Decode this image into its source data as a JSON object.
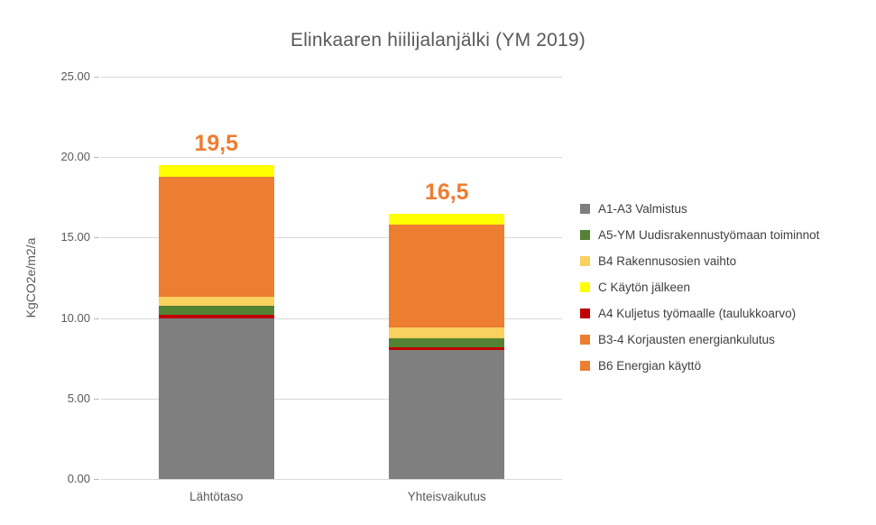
{
  "title": "Elinkaaren hiilijalanjälki (YM 2019)",
  "y_axis": {
    "title": "KgCO2e/m2/a",
    "ticks": [
      "25.00",
      "20.00",
      "15.00",
      "10.00",
      "5.00",
      "0.00"
    ]
  },
  "colors": {
    "gray": "#7f7f7f",
    "dark_red": "#c00000",
    "green": "#548235",
    "tan": "#fad05f",
    "yellow": "#ffff00",
    "orange": "#ed7d31",
    "gridline": "#d9d9d9",
    "title_text": "#595959",
    "legend_text": "#404040",
    "data_label": "#ed7d31"
  },
  "legend": {
    "items": [
      {
        "label": "A1-A3 Valmistus",
        "color": "#7f7f7f"
      },
      {
        "label": "A5-YM Uudisrakennustyömaan toiminnot",
        "color": "#548235"
      },
      {
        "label": "B4 Rakennusosien vaihto",
        "color": "#fad05f"
      },
      {
        "label": "C Käytön jälkeen",
        "color": "#ffff00"
      },
      {
        "label": "A4 Kuljetus työmaalle (taulukkoarvo)",
        "color": "#c00000"
      },
      {
        "label": "B3-4 Korjausten energiankulutus",
        "color": "#ed7d31"
      },
      {
        "label": "B6 Energian käyttö",
        "color": "#ed7d31"
      }
    ]
  },
  "chart_data": {
    "type": "bar",
    "stacked": true,
    "title": "Elinkaaren hiilijalanjälki (YM 2019)",
    "xlabel": "",
    "ylabel": "KgCO2e/m2/a",
    "ylim": [
      0,
      25
    ],
    "ytick_step": 5,
    "grid": true,
    "legend_position": "right",
    "categories": [
      "Lähtötaso",
      "Yhteisvaikutus"
    ],
    "totals": [
      19.5,
      16.5
    ],
    "total_labels": [
      "19,5",
      "16,5"
    ],
    "series": [
      {
        "name": "A1-A3 Valmistus",
        "color": "#7f7f7f",
        "values": [
          10.0,
          8.0
        ]
      },
      {
        "name": "A4 Kuljetus työmaalle (taulukkoarvo)",
        "color": "#c00000",
        "values": [
          0.2,
          0.2
        ]
      },
      {
        "name": "A5-YM Uudisrakennustyömaan toiminnot",
        "color": "#548235",
        "values": [
          0.55,
          0.55
        ]
      },
      {
        "name": "B4 Rakennusosien vaihto",
        "color": "#fad05f",
        "values": [
          0.55,
          0.65
        ]
      },
      {
        "name": "B3-4 Korjausten energiankulutus",
        "color": "#ed7d31",
        "values": [
          0.0,
          0.0
        ]
      },
      {
        "name": "B6 Energian käyttö",
        "color": "#ed7d31",
        "values": [
          7.5,
          6.4
        ]
      },
      {
        "name": "C Käytön jälkeen",
        "color": "#ffff00",
        "values": [
          0.7,
          0.7
        ]
      }
    ]
  }
}
